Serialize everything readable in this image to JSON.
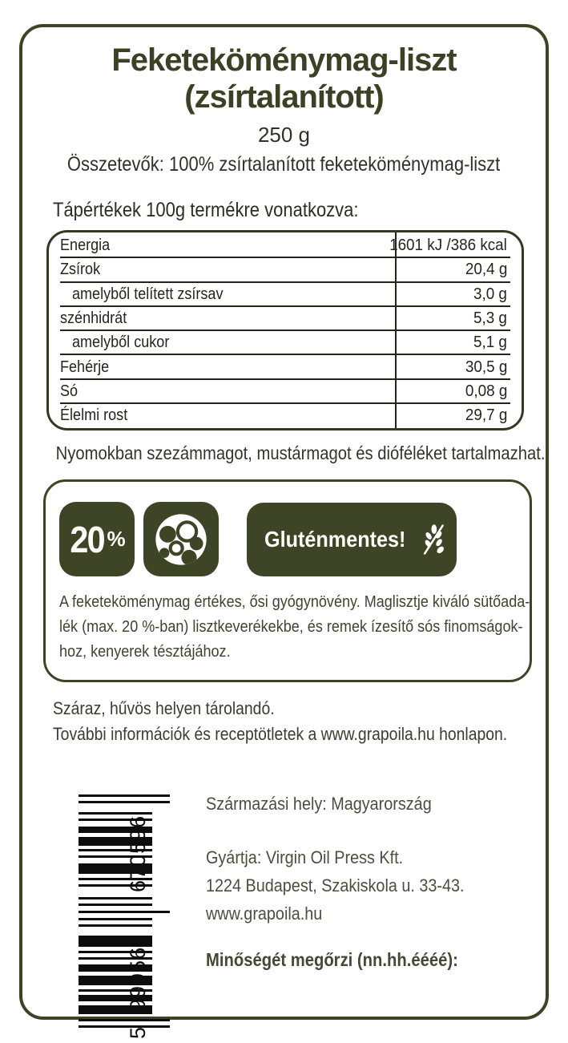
{
  "label": {
    "title_line1": "Feketeköménymag-liszt",
    "title_line2": "(zsírtalanított)",
    "weight": "250 g",
    "ingredients": "Összetevők: 100% zsírtalanított feketeköménymag-liszt",
    "nutrition_heading": "Tápértékek 100g termékre vonatkozva:",
    "allergen_note": "Nyomokban szezámmagot, mustármagot és dióféléket tartalmazhat.",
    "storage": "Száraz, hűvös helyen tárolandó.",
    "more_info": "További információk és receptötletek a www.grapoila.hu honlapon."
  },
  "nutrition_table": {
    "rows": [
      {
        "name": "Energia",
        "value": "1601 kJ /386 kcal"
      },
      {
        "name": "Zsírok",
        "value": "20,4 g"
      },
      {
        "name": "amelyből telített zsírsav",
        "value": "3,0 g"
      },
      {
        "name": "szénhidrát",
        "value": "5,3 g"
      },
      {
        "name": "amelyből cukor",
        "value": "5,1 g"
      },
      {
        "name": "Fehérje",
        "value": "30,5 g"
      },
      {
        "name": "Só",
        "value": "0,08 g"
      },
      {
        "name": "Élelmi rost",
        "value": "29,7 g"
      }
    ]
  },
  "badges": {
    "percent_number": "20",
    "percent_sign": "%",
    "seeds_icon": "seeds-dough-icon",
    "gluten_free_label": "Gluténmentes!",
    "gluten_free_icon": "crossed-wheat-icon",
    "description_line1": "A feketeköménymag értékes, ősi gyógynövény. Maglisztje kiváló sütőada-",
    "description_line2": "lék (max. 20 %-ban) lisztkeverékekbe, és remek ízesítő sós finomságok-",
    "description_line3": "hoz, kenyerek tésztájához."
  },
  "footer": {
    "origin": "Származási hely: Magyarország",
    "producer_line1": "Gyártja: Virgin Oil Press Kft.",
    "producer_line2": "1224 Budapest, Szakiskola u. 33-43.",
    "producer_line3": "www.grapoila.hu",
    "best_before": "Minőségét megőrzi (nn.hh.éééé):",
    "barcode": {
      "full_number": "5999566670596",
      "digit_first": "5",
      "digits_group1": "999566",
      "digits_group2": "670596"
    }
  },
  "colors": {
    "accent_olive": "#3e4325",
    "badge_background": "#3e4426",
    "table_ink": "#24261c",
    "barcode_black": "#0d0d0d"
  }
}
